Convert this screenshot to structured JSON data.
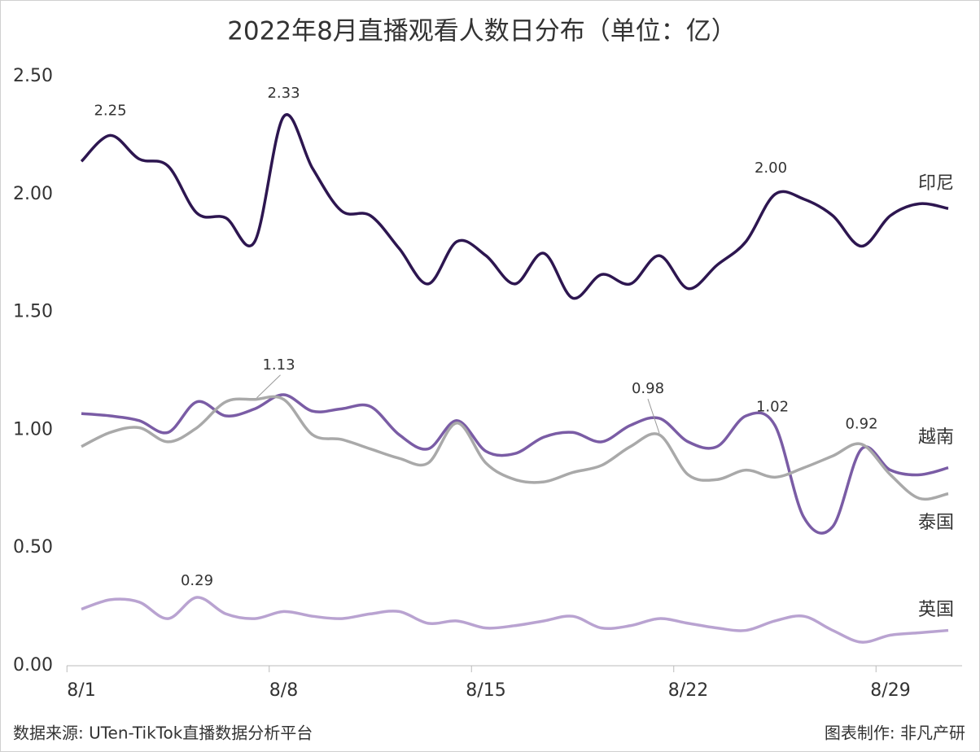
{
  "chart_data": {
    "type": "line",
    "title": "2022年8月直播观看人数日分布（单位：亿）",
    "source": "数据来源: UTen-TikTok直播数据分析平台",
    "credit": "图表制作: 非凡产研",
    "categories": [
      "8/1",
      null,
      null,
      null,
      null,
      null,
      null,
      "8/8",
      null,
      null,
      null,
      null,
      null,
      null,
      "8/15",
      null,
      null,
      null,
      null,
      null,
      null,
      "8/22",
      null,
      null,
      null,
      null,
      null,
      null,
      "8/29",
      null,
      null
    ],
    "ylim": [
      0,
      2.5
    ],
    "yticks": [
      {
        "value": 0,
        "label": "0.00"
      },
      {
        "value": 0.5,
        "label": "0.50"
      },
      {
        "value": 1,
        "label": "1.00"
      },
      {
        "value": 1.5,
        "label": "1.50"
      },
      {
        "value": 2,
        "label": "2.00"
      },
      {
        "value": 2.5,
        "label": "2.50"
      }
    ],
    "grid": false,
    "series": [
      {
        "name": "印尼",
        "color": "#2d1650",
        "values": [
          2.14,
          2.25,
          2.15,
          2.12,
          1.92,
          1.9,
          1.8,
          2.33,
          2.11,
          1.93,
          1.91,
          1.77,
          1.62,
          1.8,
          1.74,
          1.62,
          1.75,
          1.56,
          1.66,
          1.62,
          1.74,
          1.6,
          1.7,
          1.8,
          2.0,
          1.98,
          1.91,
          1.78,
          1.91,
          1.96,
          1.94
        ],
        "value_labels": [
          null,
          "2.25",
          null,
          null,
          null,
          null,
          null,
          "2.33",
          null,
          null,
          null,
          null,
          null,
          null,
          null,
          null,
          null,
          null,
          null,
          null,
          null,
          null,
          null,
          null,
          "2.00",
          null,
          null,
          null,
          null,
          null,
          null
        ]
      },
      {
        "name": "越南",
        "color": "#7a5ca5",
        "values": [
          1.07,
          1.06,
          1.04,
          0.99,
          1.12,
          1.06,
          1.09,
          1.15,
          1.08,
          1.09,
          1.1,
          0.98,
          0.92,
          1.04,
          0.91,
          0.9,
          0.97,
          0.99,
          0.95,
          1.02,
          1.05,
          0.95,
          0.93,
          1.06,
          1.02,
          0.63,
          0.59,
          0.92,
          0.83,
          0.81,
          0.84
        ],
        "value_labels": [
          null,
          null,
          null,
          null,
          null,
          null,
          null,
          null,
          null,
          null,
          null,
          null,
          null,
          null,
          null,
          null,
          null,
          null,
          null,
          null,
          null,
          null,
          null,
          null,
          "1.02",
          null,
          null,
          "0.92",
          null,
          null,
          null
        ]
      },
      {
        "name": "泰国",
        "color": "#a9a9a9",
        "values": [
          0.93,
          0.99,
          1.01,
          0.95,
          1.01,
          1.12,
          1.13,
          1.13,
          0.98,
          0.96,
          0.92,
          0.88,
          0.86,
          1.03,
          0.86,
          0.79,
          0.78,
          0.82,
          0.85,
          0.93,
          0.98,
          0.81,
          0.79,
          0.83,
          0.8,
          0.84,
          0.89,
          0.94,
          0.81,
          0.71,
          0.73
        ],
        "value_labels": [
          null,
          null,
          null,
          null,
          null,
          null,
          null,
          "1.13",
          null,
          null,
          null,
          null,
          null,
          null,
          null,
          null,
          null,
          null,
          null,
          null,
          "0.98",
          null,
          null,
          null,
          null,
          null,
          null,
          null,
          null,
          null,
          null
        ]
      },
      {
        "name": "英国",
        "color": "#b9a3d1",
        "values": [
          0.24,
          0.28,
          0.27,
          0.2,
          0.29,
          0.22,
          0.2,
          0.23,
          0.21,
          0.2,
          0.22,
          0.23,
          0.18,
          0.19,
          0.16,
          0.17,
          0.19,
          0.21,
          0.16,
          0.17,
          0.2,
          0.18,
          0.16,
          0.15,
          0.19,
          0.21,
          0.15,
          0.1,
          0.13,
          0.14,
          0.15
        ],
        "value_labels": [
          null,
          null,
          null,
          null,
          "0.29",
          null,
          null,
          null,
          null,
          null,
          null,
          null,
          null,
          null,
          null,
          null,
          null,
          null,
          null,
          null,
          null,
          null,
          null,
          null,
          null,
          null,
          null,
          null,
          null,
          null,
          null
        ]
      }
    ]
  }
}
